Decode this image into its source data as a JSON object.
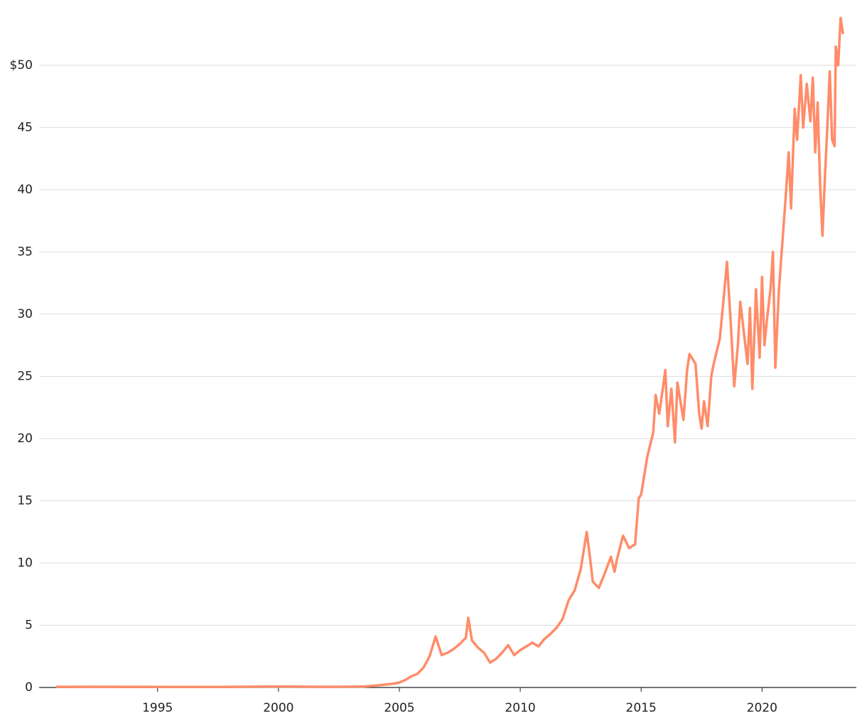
{
  "chart_data": {
    "type": "line",
    "x": [
      1990.8,
      1991.5,
      1992.5,
      1993.5,
      1994.5,
      1995.5,
      1996.5,
      1997.5,
      1998.5,
      1999.5,
      2000.5,
      2001.5,
      2002.5,
      2003.5,
      2004,
      2004.25,
      2004.5,
      2004.75,
      2005,
      2005.25,
      2005.5,
      2005.75,
      2006,
      2006.25,
      2006.5,
      2006.75,
      2007,
      2007.25,
      2007.5,
      2007.75,
      2007.85,
      2008,
      2008.25,
      2008.5,
      2008.75,
      2009,
      2009.25,
      2009.5,
      2009.75,
      2010,
      2010.25,
      2010.5,
      2010.75,
      2011,
      2011.25,
      2011.5,
      2011.75,
      2012,
      2012.25,
      2012.5,
      2012.75,
      2012.9,
      2013,
      2013.25,
      2013.5,
      2013.75,
      2013.9,
      2014,
      2014.25,
      2014.5,
      2014.75,
      2014.9,
      2015,
      2015.25,
      2015.5,
      2015.6,
      2015.75,
      2016,
      2016.1,
      2016.25,
      2016.4,
      2016.5,
      2016.75,
      2016.9,
      2017,
      2017.25,
      2017.4,
      2017.5,
      2017.6,
      2017.75,
      2017.9,
      2018,
      2018.25,
      2018.4,
      2018.55,
      2018.7,
      2018.85,
      2019,
      2019.1,
      2019.25,
      2019.4,
      2019.5,
      2019.6,
      2019.75,
      2019.9,
      2020,
      2020.1,
      2020.2,
      2020.35,
      2020.45,
      2020.55,
      2020.7,
      2020.85,
      2021,
      2021.1,
      2021.2,
      2021.35,
      2021.45,
      2021.6,
      2021.7,
      2021.85,
      2022,
      2022.1,
      2022.2,
      2022.3,
      2022.4,
      2022.5,
      2022.6,
      2022.7,
      2022.8,
      2022.9,
      2023,
      2023.05,
      2023.15,
      2023.25,
      2023.35
    ],
    "series": [
      {
        "color": "#ff8c69",
        "values": [
          0.05,
          0.05,
          0.06,
          0.05,
          0.05,
          0.04,
          0.04,
          0.04,
          0.06,
          0.07,
          0.07,
          0.06,
          0.06,
          0.07,
          0.15,
          0.2,
          0.25,
          0.3,
          0.4,
          0.6,
          0.9,
          1.1,
          1.6,
          2.5,
          4.1,
          2.6,
          2.8,
          3.1,
          3.5,
          4.0,
          5.6,
          3.8,
          3.2,
          2.8,
          2.0,
          2.3,
          2.8,
          3.4,
          2.6,
          3.0,
          3.3,
          3.6,
          3.3,
          3.9,
          4.3,
          4.8,
          5.5,
          7.0,
          7.8,
          9.5,
          12.5,
          10.2,
          8.5,
          8.0,
          9.2,
          10.5,
          9.3,
          10.3,
          12.2,
          11.2,
          11.5,
          15.2,
          15.5,
          18.5,
          20.5,
          23.5,
          22,
          25.5,
          21,
          24,
          19.7,
          24.5,
          21.5,
          25.5,
          26.8,
          26,
          22,
          20.8,
          23,
          21,
          25,
          26,
          28,
          31,
          34.2,
          29.5,
          24.2,
          27.5,
          31,
          28.5,
          26,
          30.5,
          24,
          32,
          26.5,
          33,
          27.5,
          29.5,
          32,
          35,
          25.7,
          32,
          36,
          40,
          43,
          38.5,
          46.5,
          44,
          49.2,
          45,
          48.5,
          45.5,
          49,
          43,
          47,
          40.5,
          36.3,
          41,
          45,
          49.5,
          44,
          43.5,
          51.5,
          50,
          53.8,
          52.5
        ]
      }
    ],
    "xlim": [
      1990.1,
      2023.9
    ],
    "xticks": [
      1995,
      2000,
      2005,
      2010,
      2015,
      2020
    ],
    "ylim": [
      0,
      54.1
    ],
    "yticks": [
      0,
      5,
      10,
      15,
      20,
      25,
      30,
      35,
      40,
      45,
      {
        "value": 50,
        "label": "$50"
      }
    ],
    "grid": true
  }
}
